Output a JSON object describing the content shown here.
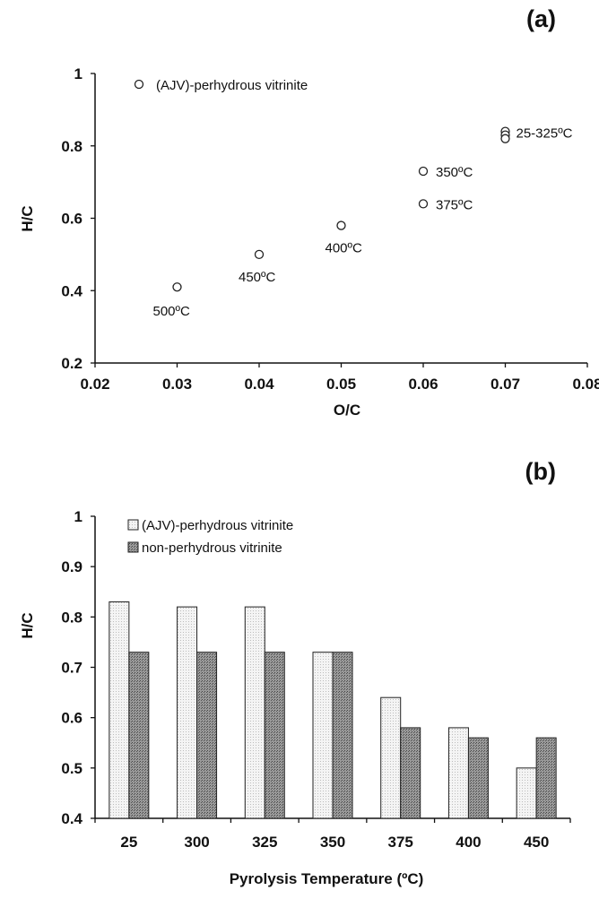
{
  "chart_data": [
    {
      "type": "scatter",
      "panel_label": "(a)",
      "xlabel": "O/C",
      "ylabel": "H/C",
      "xlim": [
        0.02,
        0.08
      ],
      "ylim": [
        0.2,
        1
      ],
      "xticks": [
        "0.02",
        "0.03",
        "0.04",
        "0.05",
        "0.06",
        "0.07",
        "0.08"
      ],
      "yticks": [
        "0.2",
        "0.4",
        "0.6",
        "0.8",
        "1"
      ],
      "legend": "(AJV)-perhydrous vitrinite",
      "points": [
        {
          "x": 0.07,
          "y": 0.84,
          "label": "25-325ºC"
        },
        {
          "x": 0.07,
          "y": 0.83,
          "label": ""
        },
        {
          "x": 0.07,
          "y": 0.82,
          "label": ""
        },
        {
          "x": 0.06,
          "y": 0.73,
          "label": "350ºC"
        },
        {
          "x": 0.06,
          "y": 0.64,
          "label": "375ºC"
        },
        {
          "x": 0.05,
          "y": 0.58,
          "label": "400ºC"
        },
        {
          "x": 0.04,
          "y": 0.5,
          "label": "450ºC"
        },
        {
          "x": 0.03,
          "y": 0.41,
          "label": "500ºC"
        }
      ]
    },
    {
      "type": "bar",
      "panel_label": "(b)",
      "xlabel": "Pyrolysis Temperature (ºC)",
      "ylabel": "H/C",
      "ylim": [
        0.4,
        1
      ],
      "yticks": [
        "0.4",
        "0.5",
        "0.6",
        "0.7",
        "0.8",
        "0.9",
        "1"
      ],
      "categories": [
        "25",
        "300",
        "325",
        "350",
        "375",
        "400",
        "450"
      ],
      "series": [
        {
          "name": "(AJV)-perhydrous vitrinite",
          "values": [
            0.83,
            0.82,
            0.82,
            0.73,
            0.64,
            0.58,
            0.5
          ],
          "color": "#f2f2f2"
        },
        {
          "name": "non-perhydrous vitrinite",
          "values": [
            0.73,
            0.73,
            0.73,
            0.73,
            0.58,
            0.56,
            0.56
          ],
          "color": "#8a8a8a"
        }
      ]
    }
  ]
}
